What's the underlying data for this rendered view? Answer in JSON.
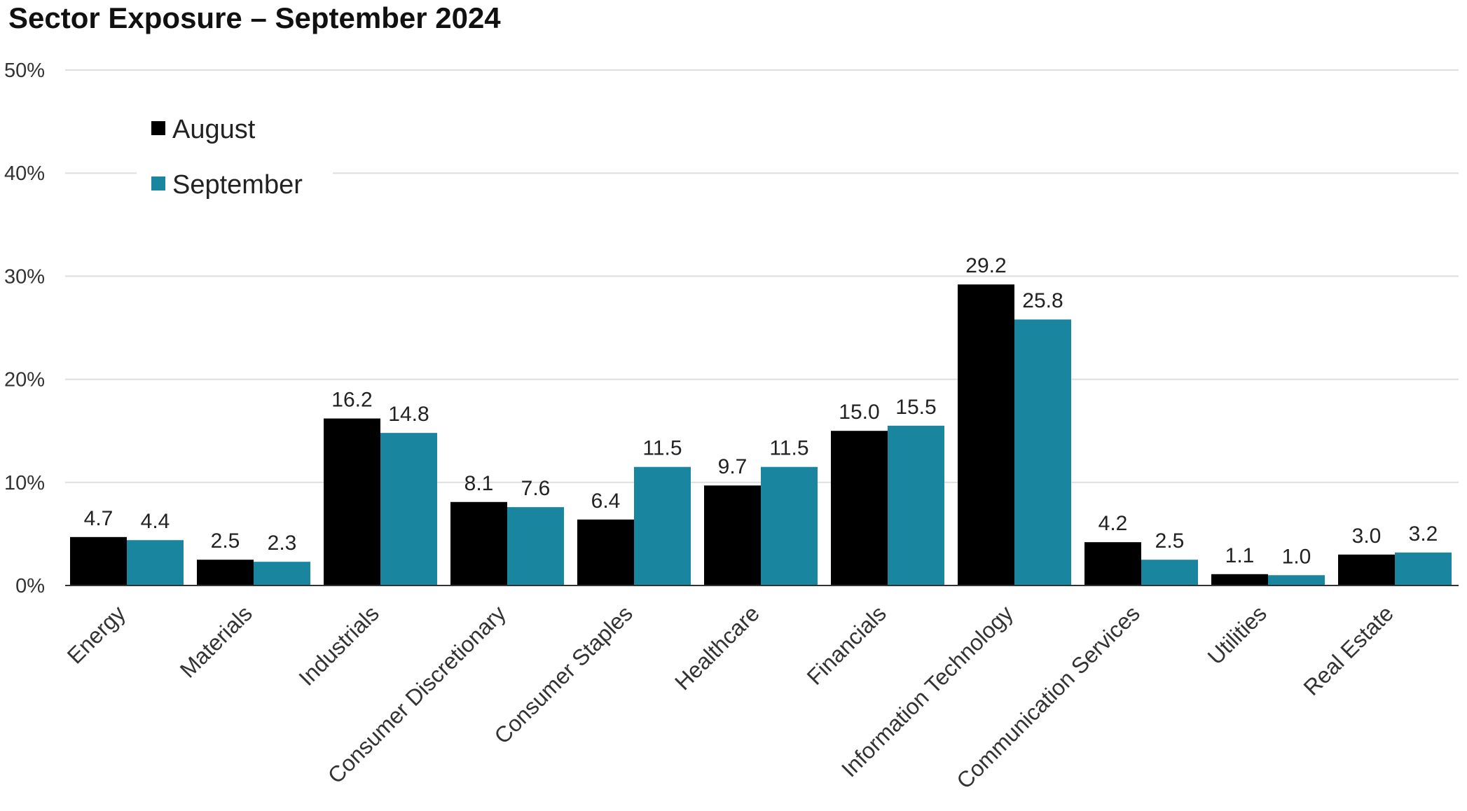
{
  "chart_data": {
    "type": "bar",
    "title": "Sector Exposure – September 2024",
    "xlabel": "",
    "ylabel": "",
    "ylim": [
      0,
      50
    ],
    "yticks": [
      0,
      10,
      20,
      30,
      40,
      50
    ],
    "ytick_labels": [
      "0%",
      "10%",
      "20%",
      "30%",
      "40%",
      "50%"
    ],
    "grid": true,
    "legend_position": "top-left",
    "categories": [
      "Energy",
      "Materials",
      "Industrials",
      "Consumer Discretionary",
      "Consumer Staples",
      "Healthcare",
      "Financials",
      "Information Technology",
      "Communication Services",
      "Utilities",
      "Real Estate"
    ],
    "series": [
      {
        "name": "August",
        "color": "#000000",
        "values": [
          4.7,
          2.5,
          16.2,
          8.1,
          6.4,
          9.7,
          15.0,
          29.2,
          4.2,
          1.1,
          3.0
        ],
        "labels": [
          "4.7",
          "2.5",
          "16.2",
          "8.1",
          "6.4",
          "9.7",
          "15.0",
          "29.2",
          "4.2",
          "1.1",
          "3.0"
        ]
      },
      {
        "name": "September",
        "color": "#1a859e",
        "values": [
          4.4,
          2.3,
          14.8,
          7.6,
          11.5,
          11.5,
          15.5,
          25.8,
          2.5,
          1.0,
          3.2
        ],
        "labels": [
          "4.4",
          "2.3",
          "14.8",
          "7.6",
          "11.5",
          "11.5",
          "15.5",
          "25.8",
          "2.5",
          "1.0",
          "3.2"
        ]
      }
    ]
  }
}
